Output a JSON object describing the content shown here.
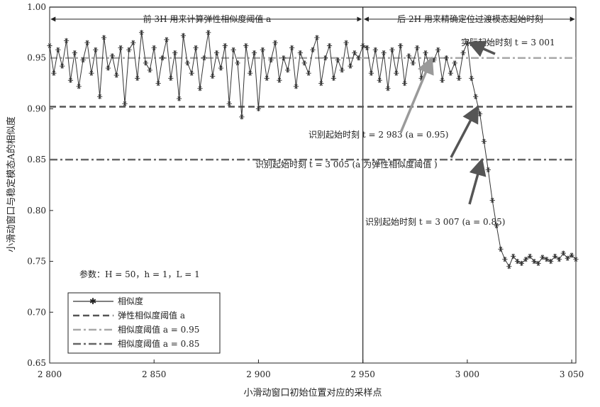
{
  "chart_data": {
    "type": "line",
    "xlabel": "小滑动窗口初始位置对应的采样点",
    "ylabel": "小滑动窗口与稳定模态A的相似度",
    "xlim": [
      2800,
      3052
    ],
    "ylim": [
      0.65,
      1.0
    ],
    "grid": false,
    "legend_placement": "bottom-left",
    "x_ticks": [
      {
        "value": 2800,
        "label": "2 800"
      },
      {
        "value": 2850,
        "label": "2 850"
      },
      {
        "value": 2900,
        "label": "2 900"
      },
      {
        "value": 2950,
        "label": "2 950"
      },
      {
        "value": 3000,
        "label": "3 000"
      },
      {
        "value": 3050,
        "label": "3 050"
      }
    ],
    "y_ticks": [
      {
        "value": 0.65,
        "label": "0.65"
      },
      {
        "value": 0.7,
        "label": "0.70"
      },
      {
        "value": 0.75,
        "label": "0.75"
      },
      {
        "value": 0.8,
        "label": "0.80"
      },
      {
        "value": 0.85,
        "label": "0.85"
      },
      {
        "value": 0.9,
        "label": "0.90"
      },
      {
        "value": 0.95,
        "label": "0.95"
      },
      {
        "value": 1.0,
        "label": "1.00"
      }
    ],
    "series": [
      {
        "name": "相似度",
        "color": "#333333",
        "style": "solid-asterisk",
        "x": [
          2800,
          2802,
          2804,
          2806,
          2808,
          2810,
          2812,
          2814,
          2816,
          2818,
          2820,
          2822,
          2824,
          2826,
          2828,
          2830,
          2832,
          2834,
          2836,
          2838,
          2840,
          2842,
          2844,
          2846,
          2848,
          2850,
          2852,
          2854,
          2856,
          2858,
          2860,
          2862,
          2864,
          2866,
          2868,
          2870,
          2872,
          2874,
          2876,
          2878,
          2880,
          2882,
          2884,
          2886,
          2888,
          2890,
          2892,
          2894,
          2896,
          2898,
          2900,
          2902,
          2904,
          2906,
          2908,
          2910,
          2912,
          2914,
          2916,
          2918,
          2920,
          2922,
          2924,
          2926,
          2928,
          2930,
          2932,
          2934,
          2936,
          2938,
          2940,
          2942,
          2944,
          2946,
          2948,
          2950,
          2952,
          2954,
          2956,
          2958,
          2960,
          2962,
          2964,
          2966,
          2968,
          2970,
          2972,
          2974,
          2976,
          2978,
          2980,
          2982,
          2984,
          2986,
          2988,
          2990,
          2992,
          2994,
          2996,
          2998,
          3000,
          3002,
          3004,
          3006,
          3008,
          3010,
          3012,
          3014,
          3016,
          3018,
          3020,
          3022,
          3024,
          3026,
          3028,
          3030,
          3032,
          3034,
          3036,
          3038,
          3040,
          3042,
          3044,
          3046,
          3048,
          3050,
          3052
        ],
        "values": [
          0.962,
          0.935,
          0.958,
          0.942,
          0.967,
          0.928,
          0.955,
          0.922,
          0.948,
          0.965,
          0.935,
          0.958,
          0.912,
          0.97,
          0.94,
          0.952,
          0.933,
          0.96,
          0.905,
          0.958,
          0.965,
          0.93,
          0.975,
          0.945,
          0.938,
          0.96,
          0.925,
          0.95,
          0.968,
          0.93,
          0.955,
          0.91,
          0.972,
          0.945,
          0.935,
          0.96,
          0.92,
          0.95,
          0.975,
          0.932,
          0.955,
          0.94,
          0.962,
          0.905,
          0.958,
          0.945,
          0.892,
          0.962,
          0.935,
          0.955,
          0.9,
          0.958,
          0.93,
          0.948,
          0.965,
          0.928,
          0.95,
          0.938,
          0.96,
          0.922,
          0.955,
          0.945,
          0.935,
          0.958,
          0.97,
          0.925,
          0.95,
          0.962,
          0.93,
          0.948,
          0.938,
          0.965,
          0.942,
          0.955,
          0.95,
          0.962,
          0.96,
          0.935,
          0.958,
          0.928,
          0.955,
          0.92,
          0.958,
          0.935,
          0.962,
          0.925,
          0.952,
          0.945,
          0.96,
          0.93,
          0.955,
          0.94,
          0.948,
          0.958,
          0.928,
          0.95,
          0.935,
          0.945,
          0.93,
          0.955,
          0.965,
          0.93,
          0.912,
          0.895,
          0.868,
          0.84,
          0.81,
          0.785,
          0.762,
          0.752,
          0.745,
          0.755,
          0.75,
          0.748,
          0.752,
          0.755,
          0.75,
          0.748,
          0.754,
          0.752,
          0.75,
          0.755,
          0.752,
          0.758,
          0.753,
          0.756,
          0.752
        ]
      },
      {
        "name": "弹性相似度阈值 a",
        "color": "#555555",
        "style": "dashed",
        "x": [
          2800,
          3052
        ],
        "values": [
          0.902,
          0.902
        ]
      },
      {
        "name": "相似度阈值 a = 0.95",
        "color": "#a8a8a8",
        "style": "dashdot",
        "x": [
          2800,
          3052
        ],
        "values": [
          0.95,
          0.95
        ]
      },
      {
        "name": "相似度阈值 a = 0.85",
        "color": "#666666",
        "style": "dashdot",
        "x": [
          2800,
          3052
        ],
        "values": [
          0.85,
          0.85
        ]
      }
    ],
    "regions": {
      "left_label": "前 3H 用来计算弹性相似度阈值 a",
      "right_label": "后 2H 用来精确定位过渡模态起始时刻",
      "divider_x": 2950
    },
    "annotations": [
      {
        "text": "实际起始时刻 t = 3 001",
        "arrow_to": {
          "x": 3001,
          "y": 0.965
        }
      },
      {
        "text": "识别起始时刻 t = 2 983 (a = 0.95)",
        "arrow_to": {
          "x": 2983,
          "y": 0.95
        }
      },
      {
        "text": "识别起始时刻 t = 3 005 (a 为弹性相似度阈值 )",
        "arrow_to": {
          "x": 3005,
          "y": 0.902
        }
      },
      {
        "text": "识别起始时刻 t = 3 007 (a = 0.85)",
        "arrow_to": {
          "x": 3007,
          "y": 0.85
        }
      }
    ],
    "params_text": "参数：H = 50，h = 1，L = 1"
  }
}
